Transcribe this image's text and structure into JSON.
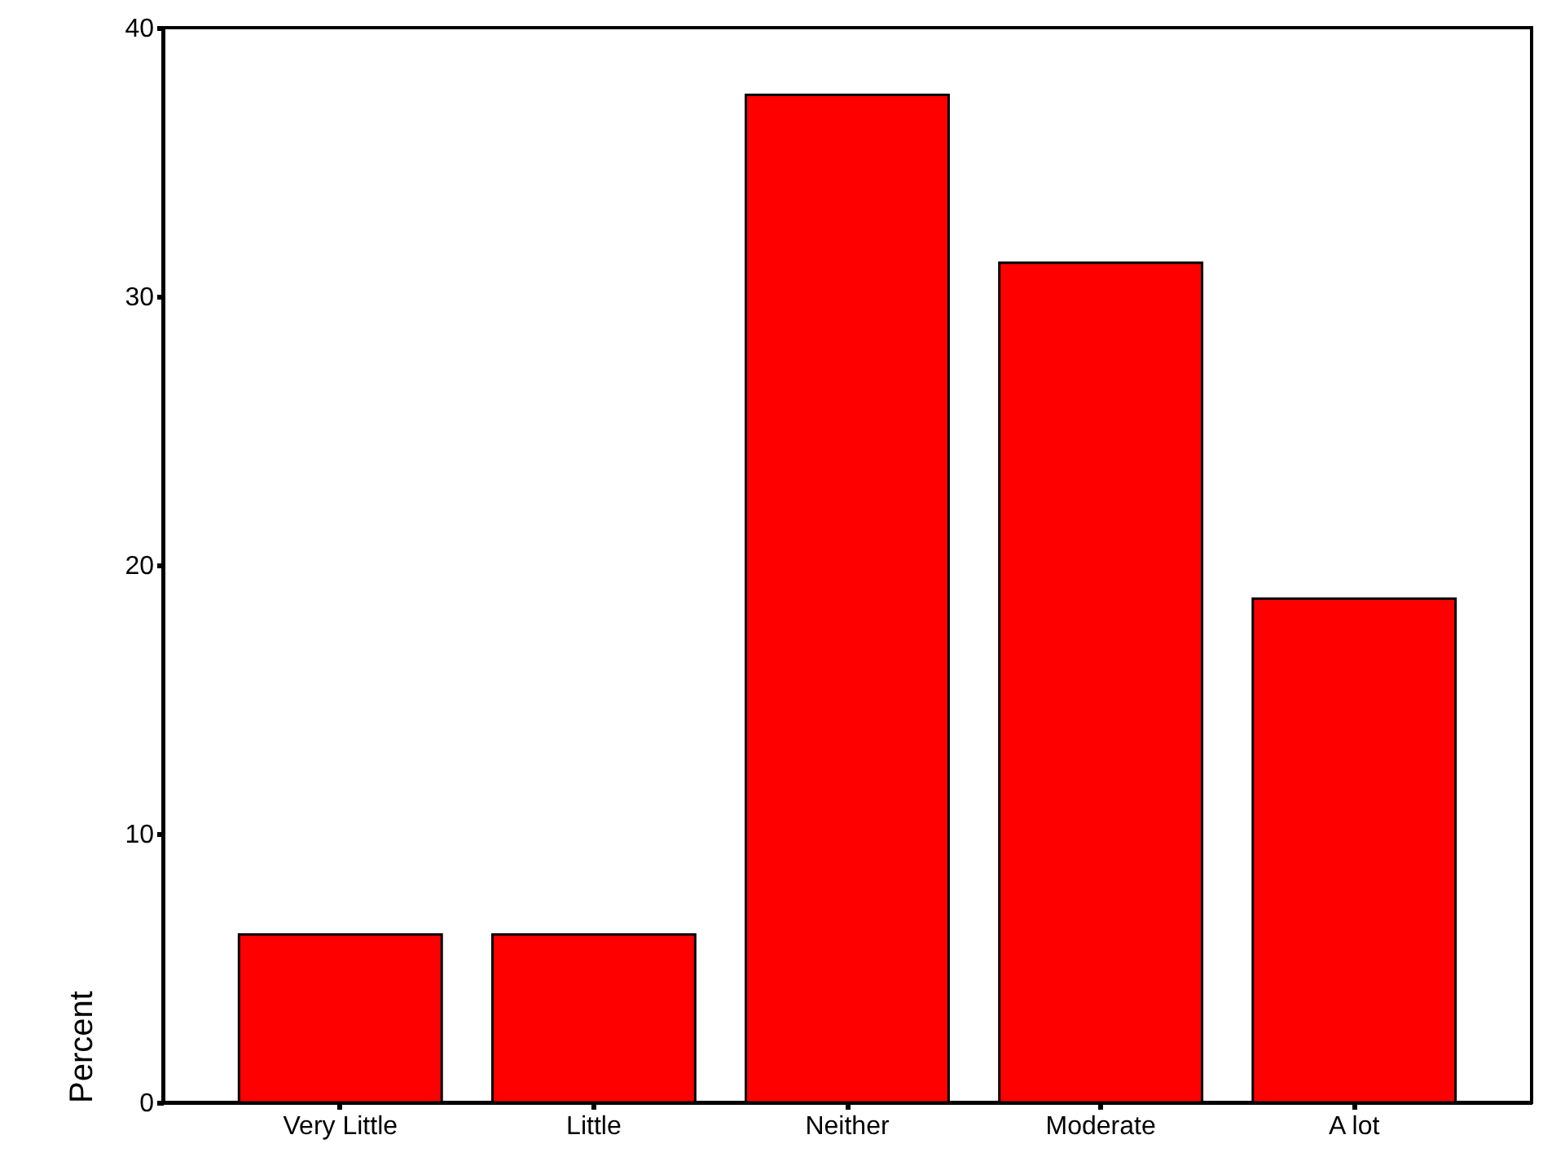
{
  "chart_data": {
    "type": "bar",
    "ylabel": "Percent",
    "categories": [
      "Very Little",
      "Little",
      "Neither",
      "Moderate",
      "A lot"
    ],
    "values": [
      6.25,
      6.25,
      37.5,
      31.25,
      18.75
    ],
    "color": "#ff0000",
    "ylim": [
      0,
      40
    ],
    "yticks": [
      0,
      10,
      20,
      30,
      40
    ],
    "grid": false
  }
}
